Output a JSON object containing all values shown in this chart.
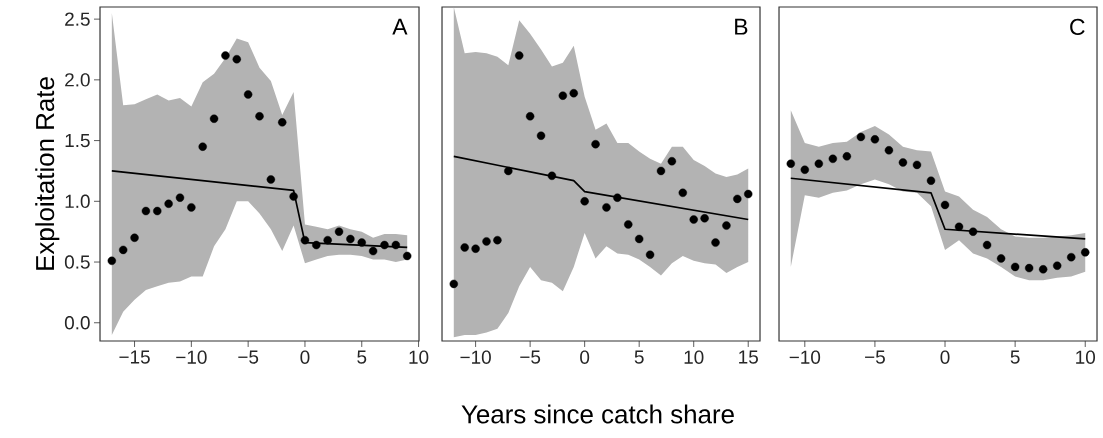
{
  "chart_data": [
    {
      "type": "scatter",
      "ylabel": "Exploitation Rate",
      "annotations": [
        "A"
      ],
      "xlim": [
        -18.04,
        10.04
      ],
      "ylim": [
        -0.15,
        2.6
      ],
      "xticks": [
        {
          "value": -15,
          "label": "−15"
        },
        {
          "value": -10,
          "label": "−10"
        },
        {
          "value": -5,
          "label": "−5"
        },
        0,
        5,
        10
      ],
      "yticks": [
        {
          "value": 0,
          "label": "0.0"
        },
        0.5,
        {
          "value": 1,
          "label": "1.0"
        },
        1.5,
        {
          "value": 2,
          "label": "2.0"
        },
        2.5
      ],
      "series": [
        {
          "marker": "circle",
          "color": "#000000",
          "x": [
            -17,
            -16,
            -15,
            -14,
            -13,
            -12,
            -11,
            -10,
            -9,
            -8,
            -7,
            -6,
            -5,
            -4,
            -3,
            -2,
            -1,
            0,
            1,
            2,
            3,
            4,
            5,
            6,
            7,
            8,
            9
          ],
          "values": [
            0.51,
            0.6,
            0.7,
            0.92,
            0.92,
            0.98,
            1.03,
            0.95,
            1.45,
            1.68,
            2.2,
            2.17,
            1.88,
            1.7,
            1.18,
            1.65,
            1.04,
            0.68,
            0.64,
            0.68,
            0.75,
            0.69,
            0.66,
            0.59,
            0.64,
            0.64,
            0.55
          ],
          "lower": [
            -0.1,
            0.09,
            0.19,
            0.27,
            0.3,
            0.33,
            0.34,
            0.38,
            0.38,
            0.63,
            0.77,
            1.0,
            1.0,
            0.9,
            0.77,
            0.59,
            0.8,
            0.49,
            0.52,
            0.55,
            0.56,
            0.56,
            0.55,
            0.52,
            0.52,
            0.5,
            0.52
          ],
          "upper": [
            2.55,
            1.79,
            1.8,
            1.84,
            1.88,
            1.83,
            1.85,
            1.78,
            1.98,
            2.05,
            2.18,
            2.34,
            2.31,
            2.1,
            1.99,
            1.71,
            1.9,
            0.81,
            0.79,
            0.77,
            0.8,
            0.77,
            0.75,
            0.7,
            0.73,
            0.73,
            0.72
          ]
        },
        {
          "type": "line",
          "color": "#000000",
          "line_style": "solid",
          "x": [
            -17,
            -1,
            0,
            9
          ],
          "values": [
            1.25,
            1.09,
            0.66,
            0.62
          ]
        }
      ]
    },
    {
      "type": "scatter",
      "xlabel": "Years since catch share",
      "annotations": [
        "B"
      ],
      "tick_labels": "x",
      "xlim": [
        -13.08,
        16.08
      ],
      "ylim": [
        -0.15,
        2.6
      ],
      "xticks": [
        {
          "value": -10,
          "label": "−10"
        },
        {
          "value": -5,
          "label": "−5"
        },
        0,
        5,
        10,
        15
      ],
      "series": [
        {
          "marker": "circle",
          "color": "#000000",
          "x": [
            -12,
            -11,
            -10,
            -9,
            -8,
            -7,
            -6,
            -5,
            -4,
            -3,
            -2,
            -1,
            0,
            1,
            2,
            3,
            4,
            5,
            6,
            7,
            8,
            9,
            10,
            11,
            12,
            13,
            14,
            15
          ],
          "values": [
            0.32,
            0.62,
            0.61,
            0.67,
            0.68,
            1.25,
            2.2,
            1.7,
            1.54,
            1.21,
            1.87,
            1.89,
            1.0,
            1.47,
            0.95,
            1.03,
            0.81,
            0.69,
            0.56,
            1.25,
            1.33,
            1.07,
            0.85,
            0.86,
            0.66,
            0.8,
            1.02,
            1.06
          ],
          "lower": [
            -0.12,
            -0.1,
            -0.1,
            -0.08,
            -0.05,
            0.08,
            0.3,
            0.46,
            0.35,
            0.33,
            0.26,
            0.46,
            0.74,
            0.53,
            0.63,
            0.57,
            0.56,
            0.52,
            0.46,
            0.39,
            0.49,
            0.55,
            0.51,
            0.49,
            0.48,
            0.41,
            0.46,
            0.5
          ],
          "upper": [
            2.6,
            2.22,
            2.23,
            2.22,
            2.19,
            2.12,
            2.49,
            2.38,
            2.25,
            2.11,
            2.14,
            2.28,
            1.86,
            1.59,
            1.64,
            1.48,
            1.48,
            1.41,
            1.35,
            1.31,
            1.45,
            1.45,
            1.34,
            1.29,
            1.23,
            1.2,
            1.22,
            1.27
          ]
        },
        {
          "type": "line",
          "color": "#000000",
          "line_style": "solid",
          "x": [
            -12,
            -1,
            0,
            15
          ],
          "values": [
            1.37,
            1.17,
            1.08,
            0.85
          ]
        }
      ]
    },
    {
      "type": "scatter",
      "annotations": [
        "C"
      ],
      "tick_labels": "x",
      "xlim": [
        -11.84,
        10.84
      ],
      "ylim": [
        -0.15,
        2.6
      ],
      "xticks": [
        {
          "value": -10,
          "label": "−10"
        },
        {
          "value": -5,
          "label": "−5"
        },
        0,
        5,
        10
      ],
      "series": [
        {
          "marker": "circle",
          "color": "#000000",
          "x": [
            -11,
            -10,
            -9,
            -8,
            -7,
            -6,
            -5,
            -4,
            -3,
            -2,
            -1,
            0,
            1,
            2,
            3,
            4,
            5,
            6,
            7,
            8,
            9,
            10
          ],
          "values": [
            1.31,
            1.26,
            1.31,
            1.35,
            1.37,
            1.53,
            1.51,
            1.42,
            1.32,
            1.3,
            1.17,
            0.97,
            0.79,
            0.75,
            0.64,
            0.53,
            0.46,
            0.45,
            0.44,
            0.47,
            0.54,
            0.58
          ],
          "lower": [
            0.46,
            1.05,
            1.03,
            1.07,
            1.09,
            1.14,
            1.18,
            1.14,
            1.08,
            1.07,
            0.96,
            0.6,
            0.68,
            0.57,
            0.53,
            0.46,
            0.38,
            0.35,
            0.35,
            0.37,
            0.38,
            0.42
          ],
          "upper": [
            1.75,
            1.48,
            1.45,
            1.48,
            1.49,
            1.57,
            1.62,
            1.55,
            1.45,
            1.42,
            1.41,
            1.08,
            1.04,
            0.93,
            0.87,
            0.77,
            0.71,
            0.7,
            0.7,
            0.71,
            0.72,
            0.74
          ]
        },
        {
          "type": "line",
          "color": "#000000",
          "line_style": "solid",
          "x": [
            -11,
            -1,
            0,
            10
          ],
          "values": [
            1.19,
            1.07,
            0.77,
            0.69
          ]
        }
      ]
    }
  ]
}
